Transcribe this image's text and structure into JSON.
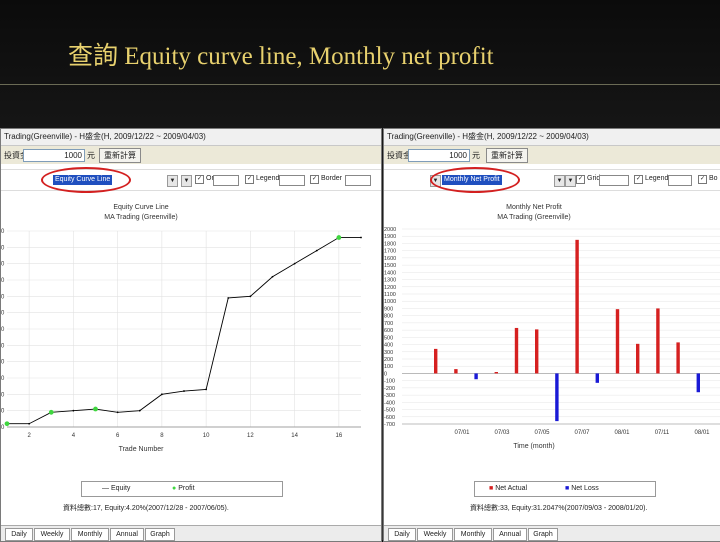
{
  "slide": {
    "title": "查詢 Equity curve line, Monthly net profit",
    "title_color": "#e8d16e"
  },
  "left_window": {
    "title": "Trading(Greenville) - H盛金(H, 2009/12/22 ~ 2009/04/03)",
    "field_label": "投資金額",
    "field_value": "1000",
    "unit": "元",
    "button_label": "重新計算",
    "select_value": "Equity Curve Line",
    "checkbox1": "On",
    "checkbox2": "Legend",
    "checkbox3": "Border",
    "chart_data": {
      "type": "line",
      "title": "Equity Curve Line",
      "subtitle": "MA Trading (Greenville)",
      "xlabel": "Trade Number",
      "x_ticks": [
        "2",
        "4",
        "6",
        "8",
        "10",
        "12",
        "14",
        "16"
      ],
      "series": [
        {
          "name": "Equity",
          "color": "#000000",
          "x": [
            1,
            2,
            3,
            4,
            5,
            6,
            7,
            8,
            9,
            10,
            11,
            12,
            13,
            14,
            15,
            16,
            17
          ],
          "values": [
            0.2,
            0.2,
            0.9,
            1.0,
            1.1,
            0.9,
            1.0,
            2.0,
            2.2,
            2.3,
            7.9,
            8.0,
            9.2,
            10.0,
            10.8,
            11.6,
            11.6
          ]
        }
      ],
      "markers": {
        "name": "Profit",
        "color": "#3fd63f",
        "x": [
          1,
          3,
          5,
          16
        ],
        "values": [
          0.2,
          0.9,
          1.1,
          11.6
        ]
      },
      "xlim": [
        1,
        17
      ],
      "ylim": [
        0,
        12
      ]
    },
    "legend": {
      "line_label": "Equity",
      "marker_label": "Profit"
    },
    "status": "資料總數:17, Equity:4.20%(2007/12/28 - 2007/06/05).",
    "tabs": [
      "Daily",
      "Weekly",
      "Monthly",
      "Annual",
      "Graph"
    ]
  },
  "right_window": {
    "title": "Trading(Greenville) - H盛金(H, 2009/12/22 ~ 2009/04/03)",
    "field_label": "投資金額",
    "field_value": "1000",
    "unit": "元",
    "button_label": "重新計算",
    "select_value": "Monthly Net Profit",
    "checkbox1": "Grid",
    "checkbox2": "Legend",
    "checkbox3": "Bo",
    "chart_data": {
      "type": "bar",
      "title": "Monthly Net Profit",
      "subtitle": "MA Trading (Greenville)",
      "xlabel": "Time (month)",
      "x_ticks": [
        "07/01",
        "07/03",
        "07/05",
        "07/07",
        "08/01",
        "07/11",
        "08/01"
      ],
      "y_ticks": [
        "-700",
        "-600",
        "-500",
        "-400",
        "-300",
        "-200",
        "-100",
        "0",
        "100",
        "200",
        "300",
        "400",
        "500",
        "600",
        "700",
        "800",
        "900",
        "1000",
        "1100",
        "1200",
        "1300",
        "1400",
        "1500",
        "1600",
        "1700",
        "1800",
        "1900",
        "2000"
      ],
      "ylim": [
        -700,
        2000
      ],
      "series": [
        {
          "name": "Net Actual",
          "color": "#d62020",
          "values": [
            0,
            20,
            340,
            60,
            0,
            100,
            0,
            0,
            630,
            0,
            610,
            0,
            0,
            0,
            0,
            0,
            0,
            1850,
            0,
            0,
            0,
            890,
            0,
            0,
            0,
            410,
            0,
            0,
            0,
            900,
            0,
            0,
            0,
            430,
            0,
            0,
            0,
            0
          ]
        },
        {
          "name": "Net Loss",
          "color": "#1a1ad6",
          "values": [
            0,
            0,
            0,
            0,
            0,
            -80,
            0,
            0,
            0,
            0,
            0,
            0,
            0,
            0,
            0,
            -660,
            0,
            0,
            0,
            0,
            0,
            0,
            0,
            0,
            0,
            -130,
            0,
            0,
            0,
            0,
            0,
            0,
            0,
            0,
            0,
            0,
            0,
            -260
          ]
        }
      ],
      "bar_positions": [
        {
          "x": 0,
          "type": "actual",
          "value": 340
        },
        {
          "x": 1,
          "type": "actual",
          "value": 60
        },
        {
          "x": 2,
          "type": "loss",
          "value": -80
        },
        {
          "x": 3,
          "type": "actual",
          "value": 20
        },
        {
          "x": 4,
          "type": "actual",
          "value": 630
        },
        {
          "x": 5,
          "type": "actual",
          "value": 610
        },
        {
          "x": 6,
          "type": "loss",
          "value": -660
        },
        {
          "x": 7,
          "type": "actual",
          "value": 1850
        },
        {
          "x": 8,
          "type": "loss",
          "value": -130
        },
        {
          "x": 9,
          "type": "actual",
          "value": 890
        },
        {
          "x": 10,
          "type": "actual",
          "value": 410
        },
        {
          "x": 11,
          "type": "actual",
          "value": 900
        },
        {
          "x": 12,
          "type": "actual",
          "value": 430
        },
        {
          "x": 13,
          "type": "loss",
          "value": -260
        }
      ]
    },
    "legend": {
      "actual_label": "Net Actual",
      "loss_label": "Net Loss"
    },
    "status": "資料總數:33, Equity:31.2047%(2007/09/03 - 2008/01/20).",
    "tabs": [
      "Daily",
      "Weekly",
      "Monthly",
      "Annual",
      "Graph"
    ]
  }
}
